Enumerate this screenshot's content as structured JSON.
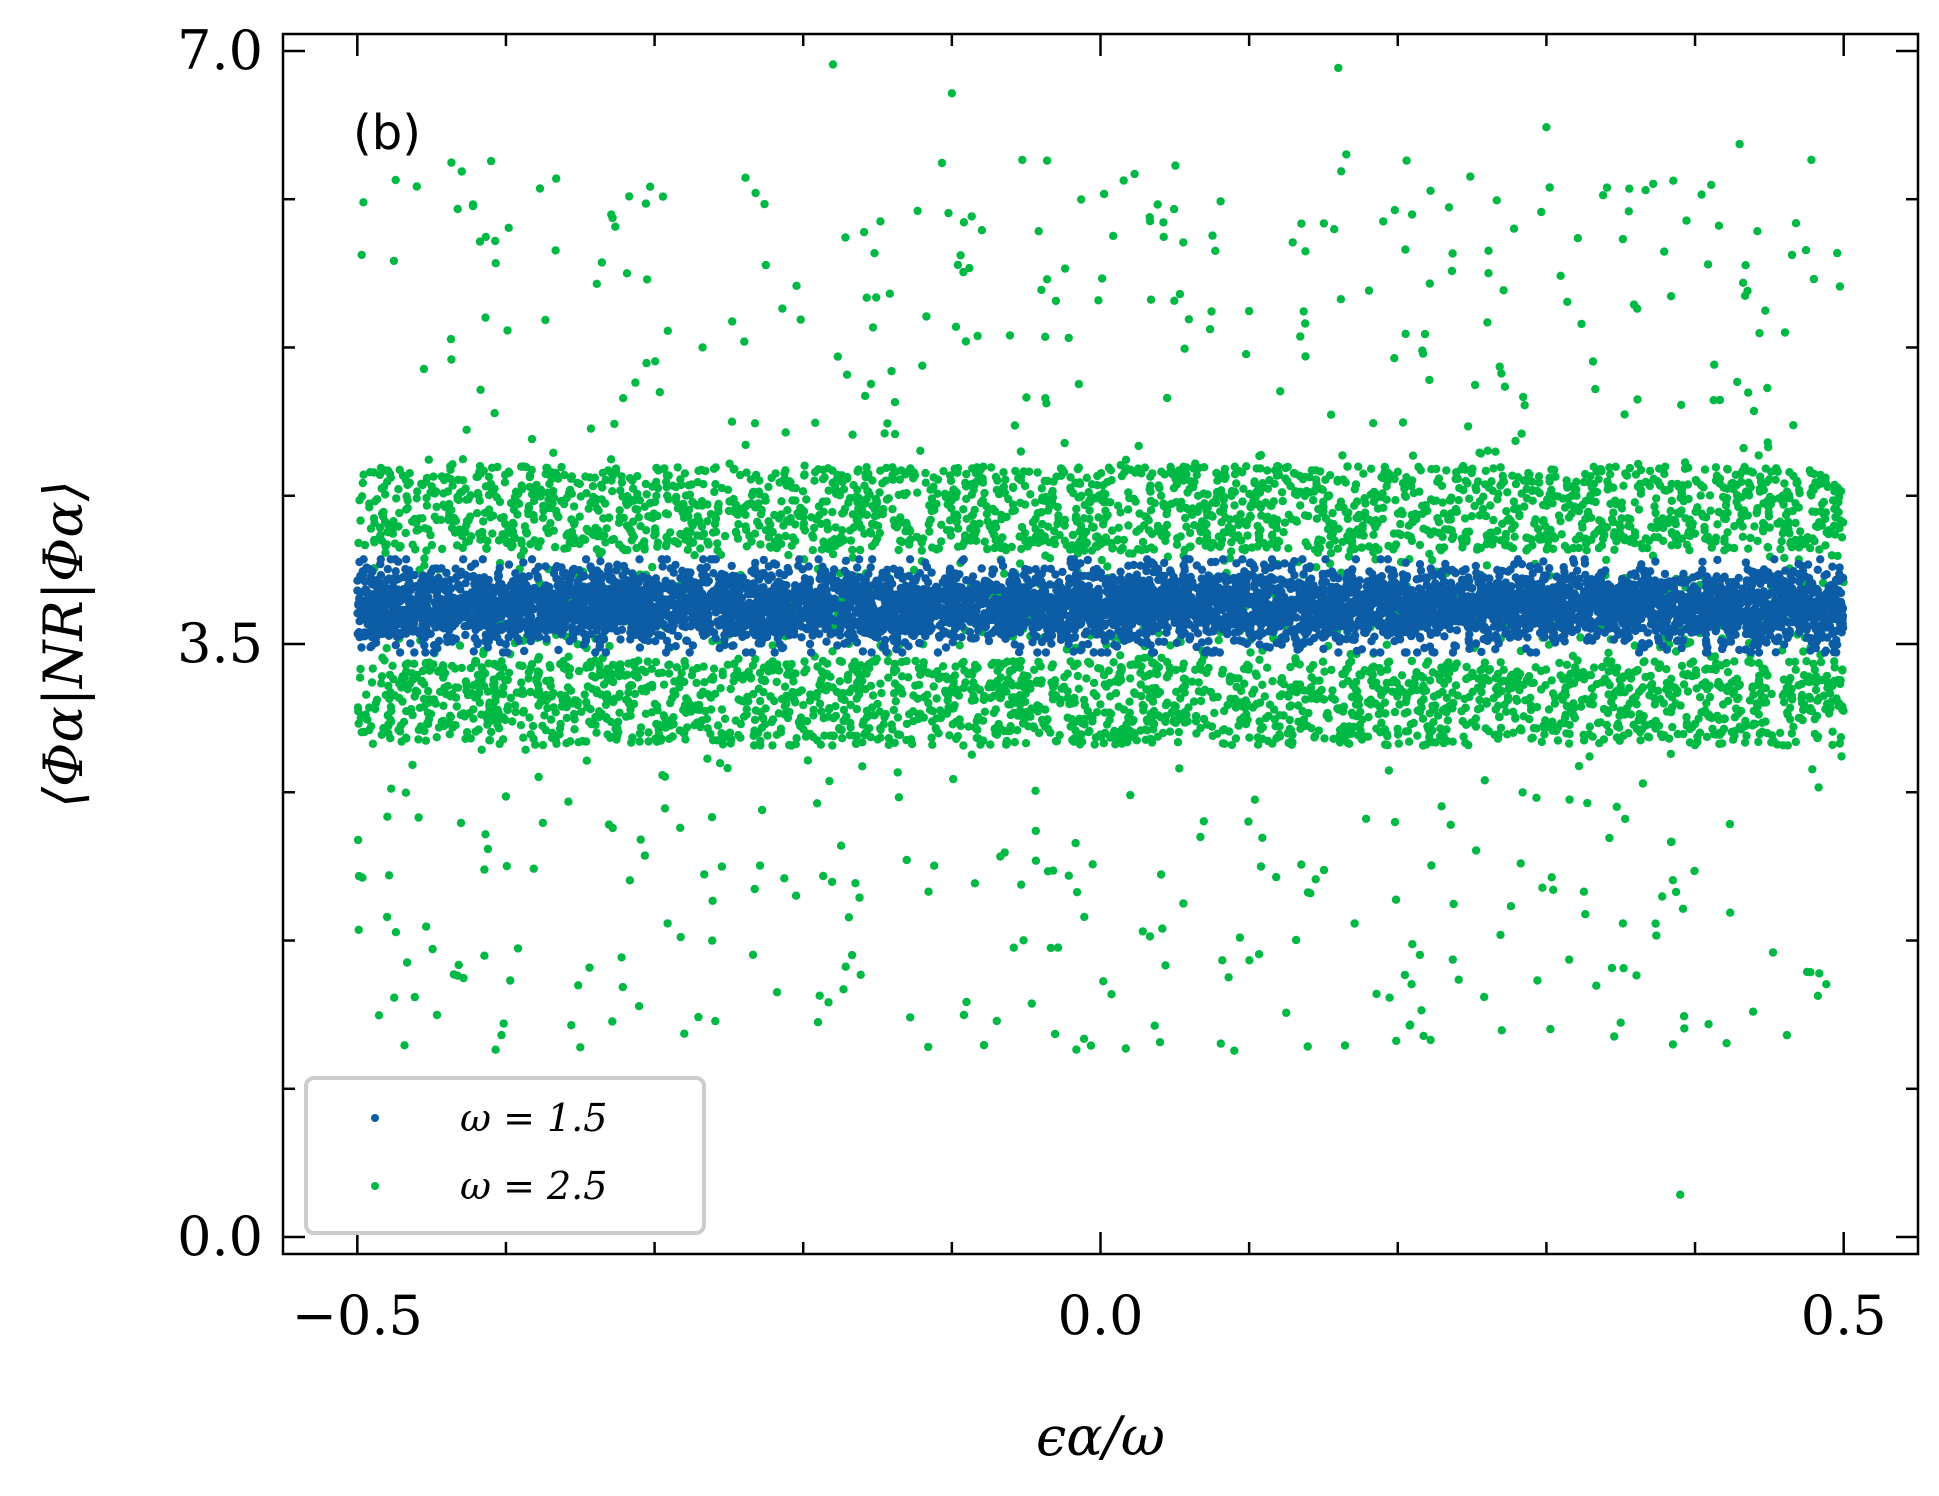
{
  "chart_data": {
    "type": "scatter",
    "panel_label": "(b)",
    "xlabel": "ϵα/ω",
    "ylabel": "⟨Φα|NR|Φα⟩",
    "xlim": [
      -0.55,
      0.55
    ],
    "ylim": [
      -0.1,
      7.1
    ],
    "xticks": [
      -0.5,
      0.0,
      0.5
    ],
    "xtick_labels": [
      "−0.5",
      "0.0",
      "0.5"
    ],
    "yticks": [
      0.0,
      3.5,
      7.0
    ],
    "ytick_labels": [
      "0.0",
      "3.5",
      "7.0"
    ],
    "x_minor_step": 0.1,
    "y_minor_step": 0.875,
    "grid": false,
    "legend_position": "bottom-left",
    "series": [
      {
        "name": "ω = 1.5",
        "color": "#0c5da5",
        "point_count": 6500,
        "x_range": [
          -0.5,
          0.5
        ],
        "y_center": 3.72,
        "y_core_halfwidth": 0.22,
        "y_spread_range": [
          3.45,
          4.0
        ]
      },
      {
        "name": "ω = 2.5",
        "color": "#00b945",
        "point_count": 5200,
        "x_range": [
          -0.5,
          0.5
        ],
        "y_center": 3.72,
        "y_bands": [
          [
            2.9,
            3.4
          ],
          [
            4.05,
            4.55
          ]
        ],
        "y_spread_range": [
          1.1,
          6.4
        ],
        "outliers": [
          {
            "x": -0.18,
            "y": 6.92
          },
          {
            "x": -0.1,
            "y": 6.75
          },
          {
            "x": 0.16,
            "y": 6.9
          },
          {
            "x": 0.3,
            "y": 6.55
          },
          {
            "x": 0.43,
            "y": 6.45
          },
          {
            "x": -0.41,
            "y": 6.35
          },
          {
            "x": -0.46,
            "y": 6.2
          },
          {
            "x": 0.39,
            "y": 0.25
          },
          {
            "x": 0.09,
            "y": 1.1
          },
          {
            "x": -0.35,
            "y": 1.12
          },
          {
            "x": 0.04,
            "y": 1.15
          },
          {
            "x": -0.28,
            "y": 1.2
          },
          {
            "x": 0.27,
            "y": 1.22
          }
        ]
      }
    ]
  }
}
